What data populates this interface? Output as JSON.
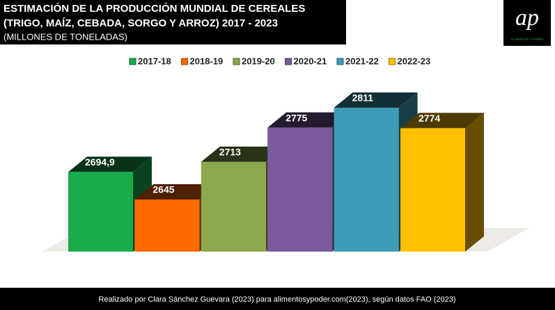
{
  "chart_data": {
    "type": "bar3d",
    "title": [
      "ESTIMACIÓN DE LA PRODUCCIÓN MUNDIAL DE CEREALES",
      "(TRIGO, MAÍZ, CEBADA, SORGO Y ARROZ) 2017 - 2023"
    ],
    "subtitle": "(MILLONES DE TONELADAS)",
    "categories": [
      "2017-18",
      "2018-19",
      "2019-20",
      "2020-21",
      "2021-22",
      "2022-23"
    ],
    "values": [
      2694.9,
      2645,
      2713,
      2775,
      2811,
      2774
    ],
    "value_labels": [
      "2694,9",
      "2645",
      "2713",
      "2775",
      "2811",
      "2774"
    ],
    "colors": [
      "#1aab4b",
      "#ff6a00",
      "#8ba84c",
      "#7a5b9b",
      "#3e9bb5",
      "#ffc000"
    ],
    "footer": "Realizado por Clara Sánchez Guevara (2023) para alimentosypoder.com(2023), según datos FAO (2023)",
    "logo": {
      "mark": "ap",
      "text": "ALIMENTOS Y PODER"
    }
  }
}
